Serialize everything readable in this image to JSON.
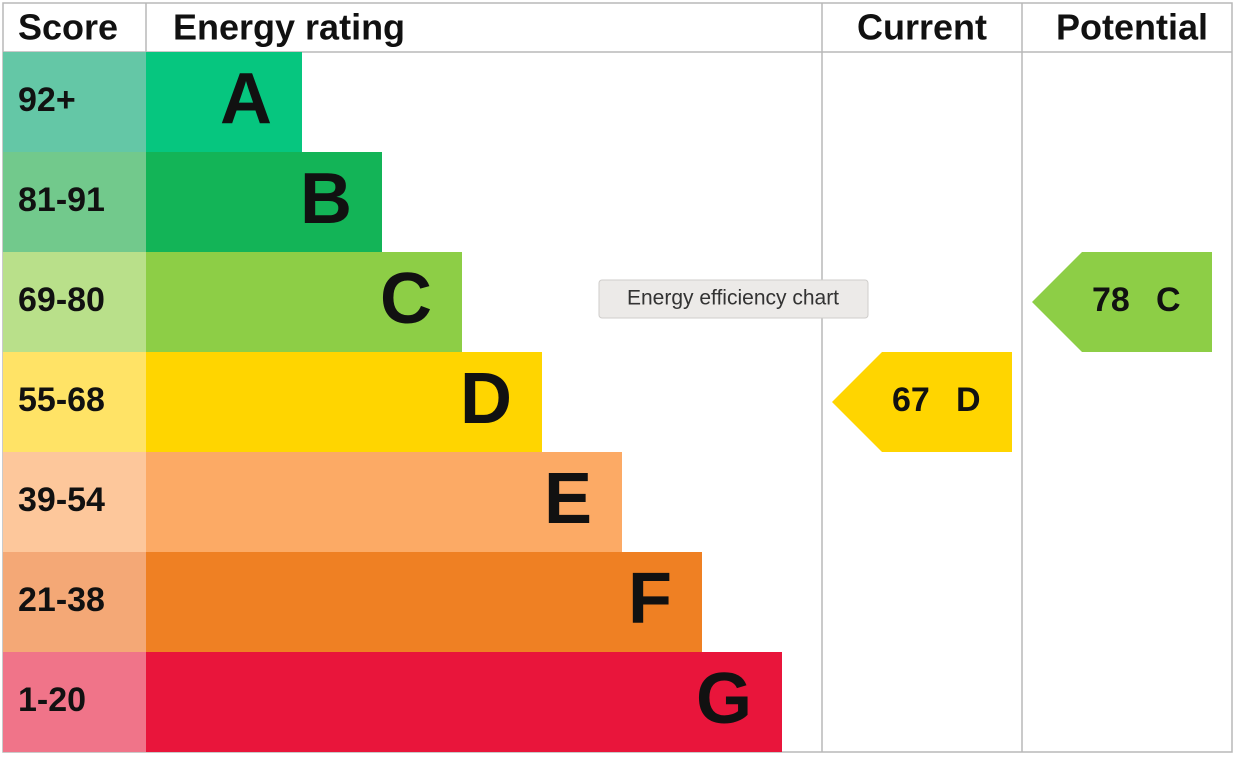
{
  "header": {
    "score": "Score",
    "rating": "Energy rating",
    "current": "Current",
    "potential": "Potential"
  },
  "bands": [
    {
      "score": "92+",
      "letter": "A",
      "color": "#06c67f",
      "score_color": "#64c7a6"
    },
    {
      "score": "81-91",
      "letter": "B",
      "color": "#13b457",
      "score_color": "#72c98c"
    },
    {
      "score": "69-80",
      "letter": "C",
      "color": "#8dce46",
      "score_color": "#b9e08a"
    },
    {
      "score": "55-68",
      "letter": "D",
      "color": "#ffd500",
      "score_color": "#ffe366"
    },
    {
      "score": "39-54",
      "letter": "E",
      "color": "#fcaa65",
      "score_color": "#fdc79b"
    },
    {
      "score": "21-38",
      "letter": "F",
      "color": "#ef8023",
      "score_color": "#f4a876"
    },
    {
      "score": "1-20",
      "letter": "G",
      "color": "#e9153b",
      "score_color": "#f07489"
    }
  ],
  "current": {
    "value": "67",
    "letter": "D"
  },
  "potential": {
    "value": "78",
    "letter": "C"
  },
  "tooltip": "Energy efficiency chart"
}
